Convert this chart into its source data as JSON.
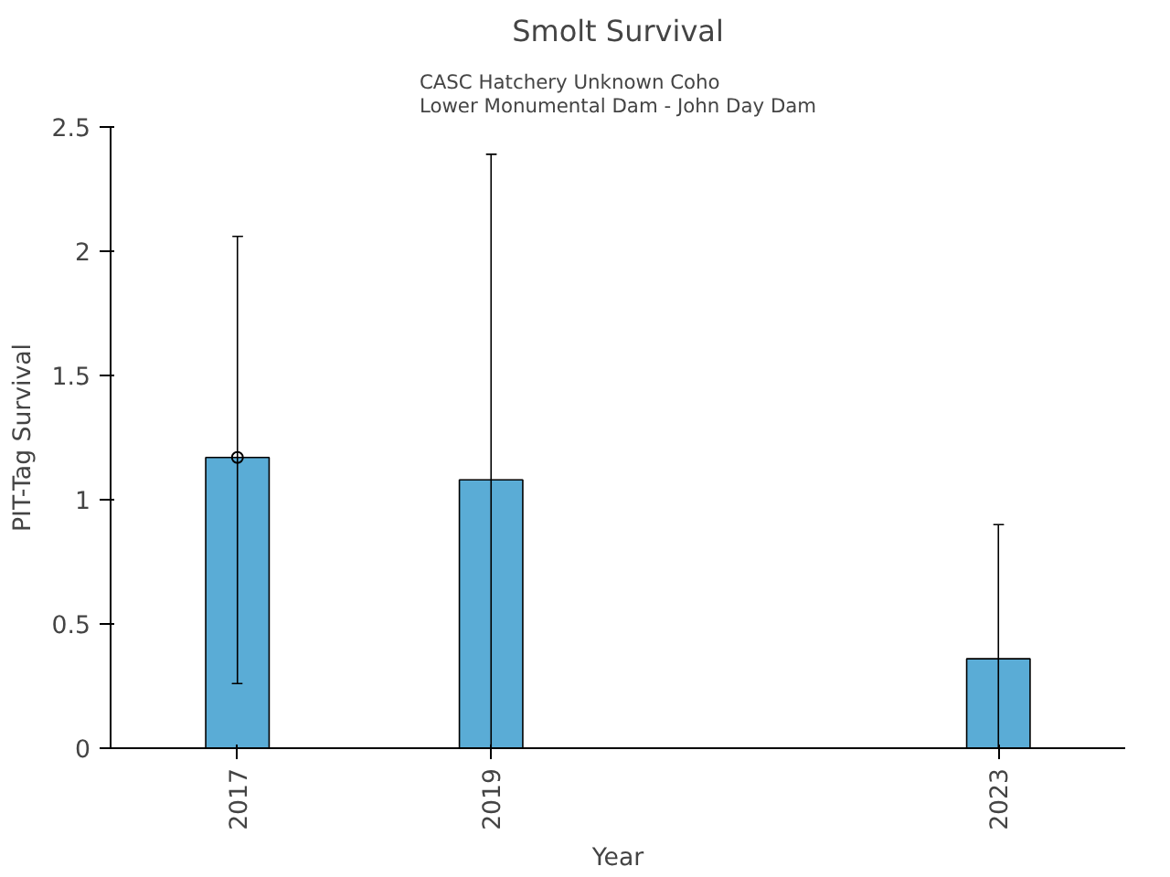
{
  "chart_data": {
    "type": "bar",
    "title": "Smolt Survival",
    "subtitle": "CASC Hatchery Unknown Coho\nLower Monumental Dam - John Day Dam",
    "xlabel": "Year",
    "ylabel": "PIT-Tag Survival",
    "xlim": [
      2016,
      2024
    ],
    "xticks": [
      2017,
      2019,
      2023
    ],
    "ylim": [
      0,
      2.5
    ],
    "yticks": [
      0,
      0.5,
      1,
      1.5,
      2,
      2.5
    ],
    "grid": false,
    "series": [
      {
        "color": "#5aacd6",
        "x": [
          2017,
          2019,
          2023
        ],
        "values": [
          1.17,
          1.08,
          0.36
        ],
        "errors": [
          [
            0.26,
            2.06
          ],
          [
            0,
            2.39
          ],
          [
            0,
            0.9
          ]
        ]
      },
      {
        "type": "scatter",
        "marker": "circle",
        "color": "#000000",
        "x": [
          2017
        ],
        "values": [
          1.17
        ]
      }
    ]
  }
}
